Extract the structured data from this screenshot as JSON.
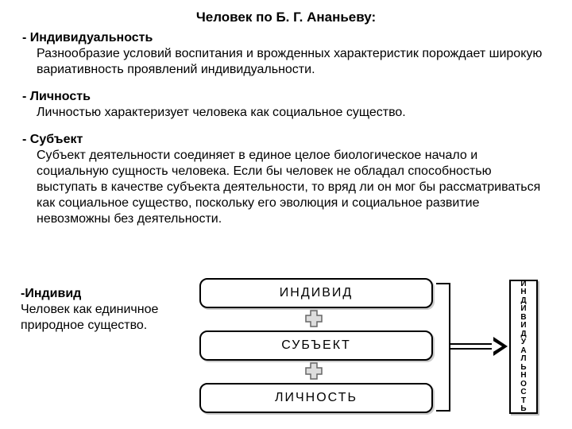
{
  "title": "Человек по Б. Г. Ананьеву:",
  "sections": [
    {
      "term": "- Индивидуальность",
      "desc": "Разнообразие условий воспитания и врожденных характеристик порождает широкую вариативность проявлений индивидуальности."
    },
    {
      "term": "- Личность",
      "desc": "Личностью характеризует человека как социальное существо."
    },
    {
      "term": "- Субъект",
      "desc": "Субъект деятельности соединяет в единое целое биологическое начало и социальную сущность человека. Если бы человек не обладал способностью выступать в качестве субъекта деятельности, то вряд ли он мог бы рассматриваться как социальное существо, поскольку его эволюция и социальное развитие невозможны без деятельности."
    }
  ],
  "bottom_section": {
    "term": "-Индивид",
    "desc": "Человек как единичное природное существо."
  },
  "diagram": {
    "boxes": [
      "ИНДИВИД",
      "СУБЪЕКТ",
      "ЛИЧНОСТЬ"
    ],
    "result": "ИНДИВИДУАЛЬНОСТЬ",
    "box_border": "#000000",
    "box_bg": "#ffffff",
    "box_shadow": "#cccccc",
    "plus_fill": "#dddddd",
    "plus_stroke": "#666666"
  },
  "colors": {
    "text": "#000000",
    "background": "#ffffff"
  },
  "typography": {
    "title_size_pt": 13,
    "body_size_pt": 12,
    "family": "Arial"
  }
}
